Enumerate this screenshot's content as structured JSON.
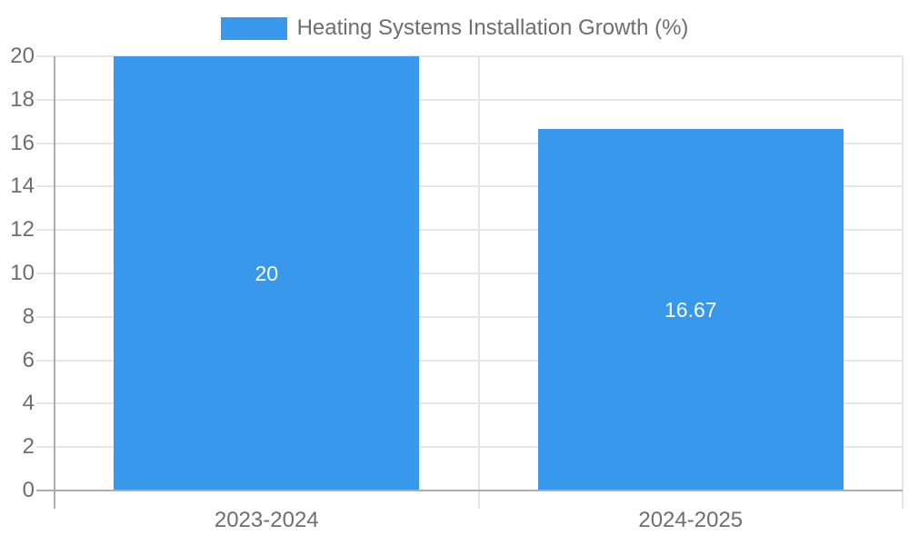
{
  "chart_data": {
    "type": "bar",
    "legend_label": "Heating Systems Installation Growth (%)",
    "legend_position": "top",
    "categories": [
      "2023-2024",
      "2024-2025"
    ],
    "values": [
      20,
      16.67
    ],
    "value_labels": [
      "20",
      "16.67"
    ],
    "xlabel": "",
    "ylabel": "",
    "ylim": [
      0,
      20
    ],
    "yticks": [
      0,
      2,
      4,
      6,
      8,
      10,
      12,
      14,
      16,
      18,
      20
    ],
    "grid": true,
    "colors": {
      "bar": "#3898EC",
      "grid_line": "#E6E6E6",
      "axis_line": "#ADADAD",
      "tick_label": "#6E6E6E",
      "legend_text": "#6E6E6E",
      "data_label": "#FFFFFF",
      "background": "#FFFFFF"
    }
  }
}
